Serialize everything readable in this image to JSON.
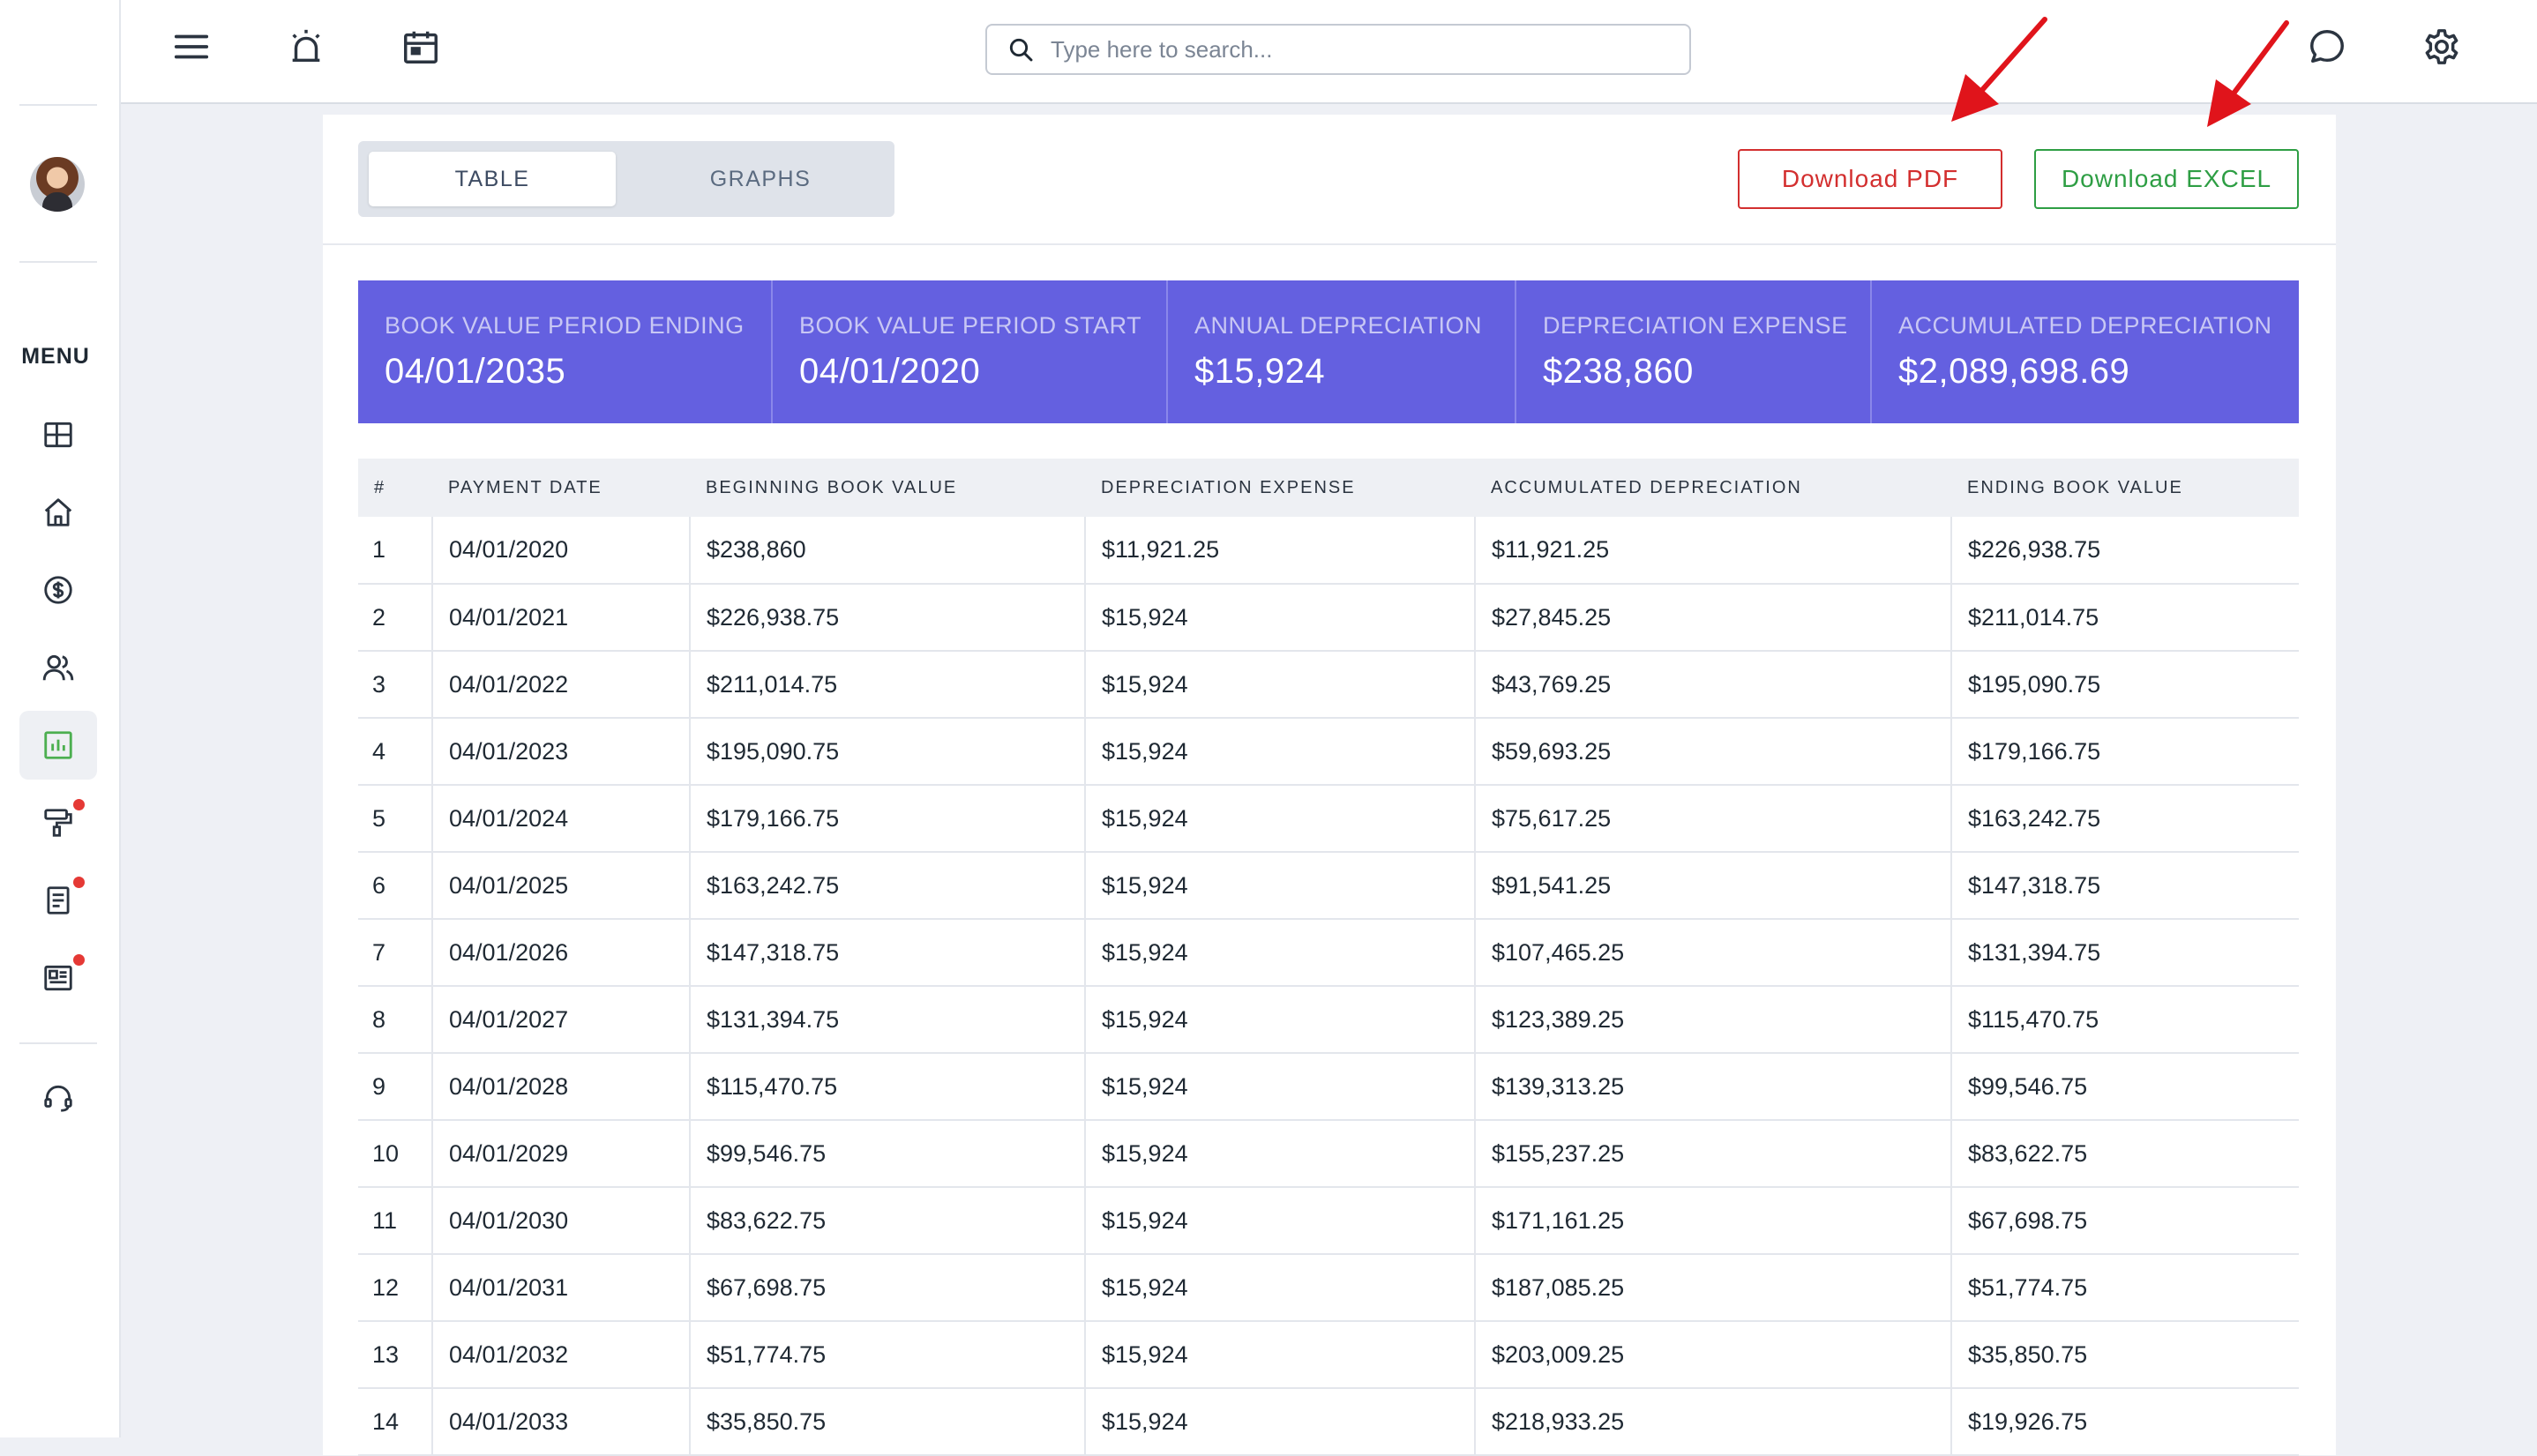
{
  "sidebar": {
    "menu_label": "MENU",
    "items": [
      {
        "icon": "dashboard-icon"
      },
      {
        "icon": "home-icon"
      },
      {
        "icon": "dollar-icon"
      },
      {
        "icon": "users-icon"
      },
      {
        "icon": "chart-icon",
        "active": true
      },
      {
        "icon": "paint-roller-icon",
        "badge": true
      },
      {
        "icon": "document-icon",
        "badge": true
      },
      {
        "icon": "newspaper-icon",
        "badge": true
      },
      {
        "icon": "headset-icon"
      }
    ]
  },
  "topbar": {
    "search_placeholder": "Type here to search..."
  },
  "view_toggle": {
    "table_label": "TABLE",
    "graphs_label": "GRAPHS",
    "active": "TABLE"
  },
  "actions": {
    "pdf_label": "Download PDF",
    "excel_label": "Download EXCEL"
  },
  "summary": [
    {
      "label": "BOOK VALUE PERIOD ENDING",
      "value": "04/01/2035"
    },
    {
      "label": "BOOK VALUE PERIOD START",
      "value": "04/01/2020"
    },
    {
      "label": "ANNUAL DEPRECIATION",
      "value": "$15,924"
    },
    {
      "label": "DEPRECIATION EXPENSE",
      "value": "$238,860"
    },
    {
      "label": "ACCUMULATED DEPRECIATION",
      "value": "$2,089,698.69"
    }
  ],
  "table": {
    "headers": [
      "#",
      "PAYMENT DATE",
      "BEGINNING BOOK VALUE",
      "DEPRECIATION EXPENSE",
      "ACCUMULATED DEPRECIATION",
      "ENDING BOOK VALUE"
    ],
    "rows": [
      [
        "1",
        "04/01/2020",
        "$238,860",
        "$11,921.25",
        "$11,921.25",
        "$226,938.75"
      ],
      [
        "2",
        "04/01/2021",
        "$226,938.75",
        "$15,924",
        "$27,845.25",
        "$211,014.75"
      ],
      [
        "3",
        "04/01/2022",
        "$211,014.75",
        "$15,924",
        "$43,769.25",
        "$195,090.75"
      ],
      [
        "4",
        "04/01/2023",
        "$195,090.75",
        "$15,924",
        "$59,693.25",
        "$179,166.75"
      ],
      [
        "5",
        "04/01/2024",
        "$179,166.75",
        "$15,924",
        "$75,617.25",
        "$163,242.75"
      ],
      [
        "6",
        "04/01/2025",
        "$163,242.75",
        "$15,924",
        "$91,541.25",
        "$147,318.75"
      ],
      [
        "7",
        "04/01/2026",
        "$147,318.75",
        "$15,924",
        "$107,465.25",
        "$131,394.75"
      ],
      [
        "8",
        "04/01/2027",
        "$131,394.75",
        "$15,924",
        "$123,389.25",
        "$115,470.75"
      ],
      [
        "9",
        "04/01/2028",
        "$115,470.75",
        "$15,924",
        "$139,313.25",
        "$99,546.75"
      ],
      [
        "10",
        "04/01/2029",
        "$99,546.75",
        "$15,924",
        "$155,237.25",
        "$83,622.75"
      ],
      [
        "11",
        "04/01/2030",
        "$83,622.75",
        "$15,924",
        "$171,161.25",
        "$67,698.75"
      ],
      [
        "12",
        "04/01/2031",
        "$67,698.75",
        "$15,924",
        "$187,085.25",
        "$51,774.75"
      ],
      [
        "13",
        "04/01/2032",
        "$51,774.75",
        "$15,924",
        "$203,009.25",
        "$35,850.75"
      ],
      [
        "14",
        "04/01/2033",
        "$35,850.75",
        "$15,924",
        "$218,933.25",
        "$19,926.75"
      ]
    ]
  },
  "colors": {
    "summary_bg": "#6460e0",
    "pdf": "#d32f2f",
    "excel": "#2e9e44",
    "annotation_arrow": "#e0141b",
    "active_nav": "#4caf50",
    "badge": "#e53935"
  }
}
